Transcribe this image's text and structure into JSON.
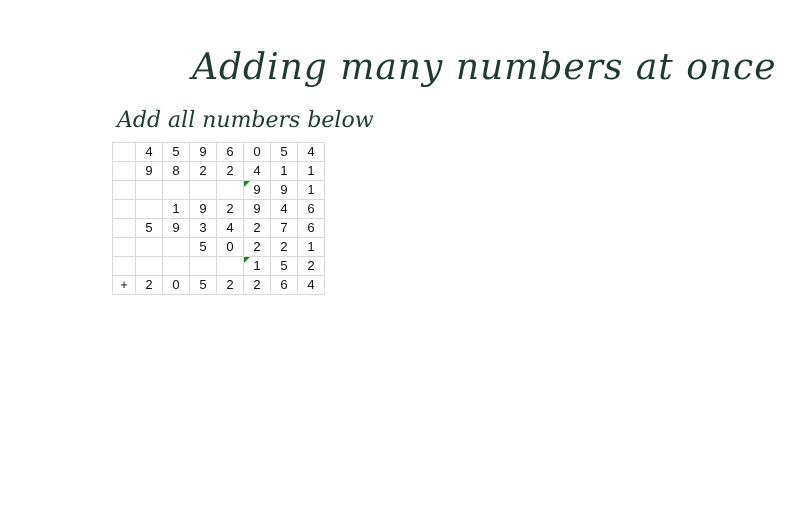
{
  "title": "Adding many numbers at once",
  "subtitle": "Add all numbers below",
  "grid": {
    "rows": [
      [
        "",
        "4",
        "5",
        "9",
        "6",
        "0",
        "5",
        "4"
      ],
      [
        "",
        "9",
        "8",
        "2",
        "2",
        "4",
        "1",
        "1"
      ],
      [
        "",
        "",
        "",
        "",
        "",
        "9",
        "9",
        "1"
      ],
      [
        "",
        "",
        "1",
        "9",
        "2",
        "9",
        "4",
        "6"
      ],
      [
        "",
        "5",
        "9",
        "3",
        "4",
        "2",
        "7",
        "6"
      ],
      [
        "",
        "",
        "",
        "5",
        "0",
        "2",
        "2",
        "1"
      ],
      [
        "",
        "",
        "",
        "",
        "",
        "1",
        "5",
        "2"
      ],
      [
        "+",
        "2",
        "0",
        "5",
        "2",
        "2",
        "6",
        "4"
      ]
    ],
    "flagged_cells": [
      [
        2,
        5
      ],
      [
        6,
        5
      ]
    ],
    "flag_color": "#1b8a2f",
    "total_row_index": 7
  }
}
